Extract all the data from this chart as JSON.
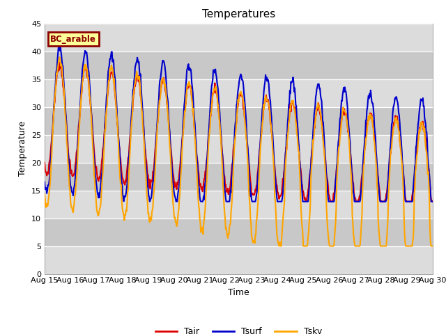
{
  "title": "Temperatures",
  "xlabel": "Time",
  "ylabel": "Temperature",
  "ylim": [
    0,
    45
  ],
  "xlim_days": [
    15,
    30
  ],
  "x_ticks": [
    15,
    16,
    17,
    18,
    19,
    20,
    21,
    22,
    23,
    24,
    25,
    26,
    27,
    28,
    29,
    30
  ],
  "x_tick_labels": [
    "Aug 15",
    "Aug 16",
    "Aug 17",
    "Aug 18",
    "Aug 19",
    "Aug 20",
    "Aug 21",
    "Aug 22",
    "Aug 23",
    "Aug 24",
    "Aug 25",
    "Aug 26",
    "Aug 27",
    "Aug 28",
    "Aug 29",
    "Aug 30"
  ],
  "color_tair": "#dd0000",
  "color_tsurf": "#0000cc",
  "color_tsky": "#ffa500",
  "legend_label": "BC_arable",
  "legend_box_color": "#ffff99",
  "legend_box_edge": "#8b0000",
  "plot_bg_light": "#dcdcdc",
  "plot_bg_dark": "#c8c8c8",
  "fig_bg": "#ffffff",
  "linewidth": 1.5,
  "title_fontsize": 11,
  "axis_fontsize": 9,
  "tick_fontsize": 8
}
